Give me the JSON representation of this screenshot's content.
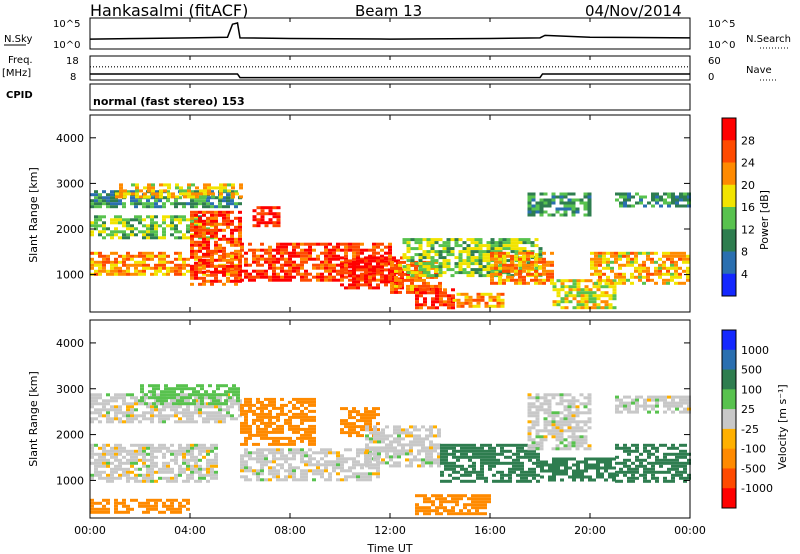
{
  "header": {
    "station": "Hankasalmi (fitACF)",
    "beam": "Beam 13",
    "date": "04/Nov/2014"
  },
  "strip_panels": {
    "nsky": {
      "left_label": "N.Sky",
      "left_ticks": [
        "10^5",
        "10^0"
      ],
      "right_label": "N.Search",
      "right_ticks": [
        "10^5",
        "10^0"
      ]
    },
    "freq": {
      "left_label_1": "Freq.",
      "left_label_2": "[MHz]",
      "left_ticks": [
        "18",
        "8"
      ],
      "right_label": "Nave",
      "right_ticks": [
        "60",
        "0"
      ]
    },
    "cpid": {
      "left_label": "CPID",
      "mode_text": "normal (fast stereo) 153"
    }
  },
  "time_axis": {
    "label": "Time UT",
    "ticks": [
      "00:00",
      "04:00",
      "08:00",
      "12:00",
      "16:00",
      "20:00",
      "00:00"
    ]
  },
  "range_axis": {
    "label": "Slant Range [km]",
    "ticks": [
      "4000",
      "3000",
      "2000",
      "1000"
    ]
  },
  "power_colorbar": {
    "label": "Power [dB]",
    "ticks": [
      "28",
      "24",
      "20",
      "16",
      "12",
      "8",
      "4"
    ],
    "colors": [
      "#1428ff",
      "#2a6fb0",
      "#2e7d4f",
      "#58c24e",
      "#f2e400",
      "#ff8a00",
      "#ff4a00",
      "#ff0000"
    ]
  },
  "velocity_colorbar": {
    "label": "Velocity [m s⁻¹]",
    "ticks": [
      "1000",
      "500",
      "100",
      "25",
      "-25",
      "-100",
      "-500",
      "-1000"
    ],
    "colors": [
      "#1428ff",
      "#2a6fb0",
      "#2e7d4f",
      "#58c24e",
      "#c8c8c8",
      "#ffb000",
      "#ff8a00",
      "#ff4a00",
      "#ff0000"
    ]
  },
  "chart_data": [
    {
      "type": "line",
      "title": "N.Sky / N.Search",
      "x_range_hours": [
        0,
        24
      ],
      "x": [
        0,
        2,
        4,
        5.5,
        5.7,
        5.9,
        6,
        8,
        12,
        16,
        18,
        18.2,
        20,
        24
      ],
      "values": [
        1.6,
        1.7,
        1.8,
        1.9,
        4.0,
        4.2,
        1.8,
        1.7,
        1.6,
        1.7,
        1.8,
        2.2,
        1.9,
        1.8
      ],
      "ylim": [
        0,
        5
      ]
    },
    {
      "type": "line",
      "title": "Freq. / Nave",
      "x_range_hours": [
        0,
        24
      ],
      "series": [
        {
          "values": [
            10.5,
            10.5,
            9.0,
            9.0,
            10.5,
            10.5
          ],
          "x": [
            0,
            5.9,
            6.0,
            18.0,
            18.1,
            24
          ]
        },
        {
          "values": [
            13.5,
            13.5,
            13.5
          ],
          "x": [
            0,
            12,
            24
          ]
        }
      ],
      "ylim": [
        8,
        18
      ]
    },
    {
      "type": "heatmap",
      "title": "Power [dB]",
      "x_range_hours": [
        0,
        24
      ],
      "ylim": [
        180,
        4500
      ],
      "zlim": [
        0,
        32
      ],
      "regions": [
        {
          "h0": 0.0,
          "h1": 6.0,
          "r0": 2500,
          "r1": 2850,
          "v": 10
        },
        {
          "h0": 1.0,
          "h1": 6.0,
          "r0": 2700,
          "r1": 3000,
          "v": 19
        },
        {
          "h0": 0.0,
          "h1": 5.0,
          "r0": 1800,
          "r1": 2300,
          "v": 14
        },
        {
          "h0": 0.0,
          "h1": 6.0,
          "r0": 1000,
          "r1": 1500,
          "v": 22
        },
        {
          "h0": 4.0,
          "h1": 6.0,
          "r0": 800,
          "r1": 2400,
          "v": 26
        },
        {
          "h0": 6.0,
          "h1": 12.0,
          "r0": 900,
          "r1": 1700,
          "v": 27
        },
        {
          "h0": 6.5,
          "h1": 7.5,
          "r0": 2100,
          "r1": 2500,
          "v": 29
        },
        {
          "h0": 10.0,
          "h1": 12.5,
          "r0": 700,
          "r1": 1400,
          "v": 30
        },
        {
          "h0": 12.0,
          "h1": 14.0,
          "r0": 600,
          "r1": 1300,
          "v": 24
        },
        {
          "h0": 13.0,
          "h1": 14.5,
          "r0": 300,
          "r1": 700,
          "v": 28
        },
        {
          "h0": 14.5,
          "h1": 16.5,
          "r0": 300,
          "r1": 600,
          "v": 22
        },
        {
          "h0": 12.5,
          "h1": 18.0,
          "r0": 1000,
          "r1": 1800,
          "v": 15
        },
        {
          "h0": 16.0,
          "h1": 18.5,
          "r0": 800,
          "r1": 1500,
          "v": 23
        },
        {
          "h0": 17.5,
          "h1": 20.0,
          "r0": 2300,
          "r1": 2800,
          "v": 11
        },
        {
          "h0": 18.5,
          "h1": 21.0,
          "r0": 300,
          "r1": 900,
          "v": 17
        },
        {
          "h0": 20.0,
          "h1": 24.0,
          "r0": 800,
          "r1": 1500,
          "v": 20
        },
        {
          "h0": 21.0,
          "h1": 24.0,
          "r0": 2500,
          "r1": 2800,
          "v": 10
        }
      ]
    },
    {
      "type": "heatmap",
      "title": "Velocity [m s⁻¹]",
      "x_range_hours": [
        0,
        24
      ],
      "ylim": [
        180,
        4500
      ],
      "zlim": [
        -1000,
        1000
      ],
      "regions": [
        {
          "h0": 0.0,
          "h1": 6.0,
          "r0": 2300,
          "r1": 2900,
          "v": 0
        },
        {
          "h0": 2.0,
          "h1": 6.0,
          "r0": 2700,
          "r1": 3100,
          "v": 60
        },
        {
          "h0": 0.0,
          "h1": 5.0,
          "r0": 1000,
          "r1": 1800,
          "v": 0
        },
        {
          "h0": 0.0,
          "h1": 4.0,
          "r0": 300,
          "r1": 600,
          "v": -150
        },
        {
          "h0": 6.0,
          "h1": 11.5,
          "r0": 1000,
          "r1": 1700,
          "v": 0
        },
        {
          "h0": 6.0,
          "h1": 9.0,
          "r0": 1800,
          "r1": 2800,
          "v": -300
        },
        {
          "h0": 10.0,
          "h1": 11.5,
          "r0": 2000,
          "r1": 2600,
          "v": -300
        },
        {
          "h0": 11.0,
          "h1": 14.0,
          "r0": 1300,
          "r1": 2200,
          "v": 0
        },
        {
          "h0": 13.0,
          "h1": 16.0,
          "r0": 300,
          "r1": 700,
          "v": -150
        },
        {
          "h0": 14.0,
          "h1": 18.0,
          "r0": 1000,
          "r1": 1800,
          "v": 200
        },
        {
          "h0": 17.5,
          "h1": 20.0,
          "r0": 1700,
          "r1": 2900,
          "v": 0
        },
        {
          "h0": 18.0,
          "h1": 21.0,
          "r0": 1000,
          "r1": 1500,
          "v": 300
        },
        {
          "h0": 21.0,
          "h1": 24.0,
          "r0": 1000,
          "r1": 1800,
          "v": 150
        },
        {
          "h0": 21.0,
          "h1": 24.0,
          "r0": 2500,
          "r1": 2850,
          "v": 0
        }
      ]
    }
  ]
}
